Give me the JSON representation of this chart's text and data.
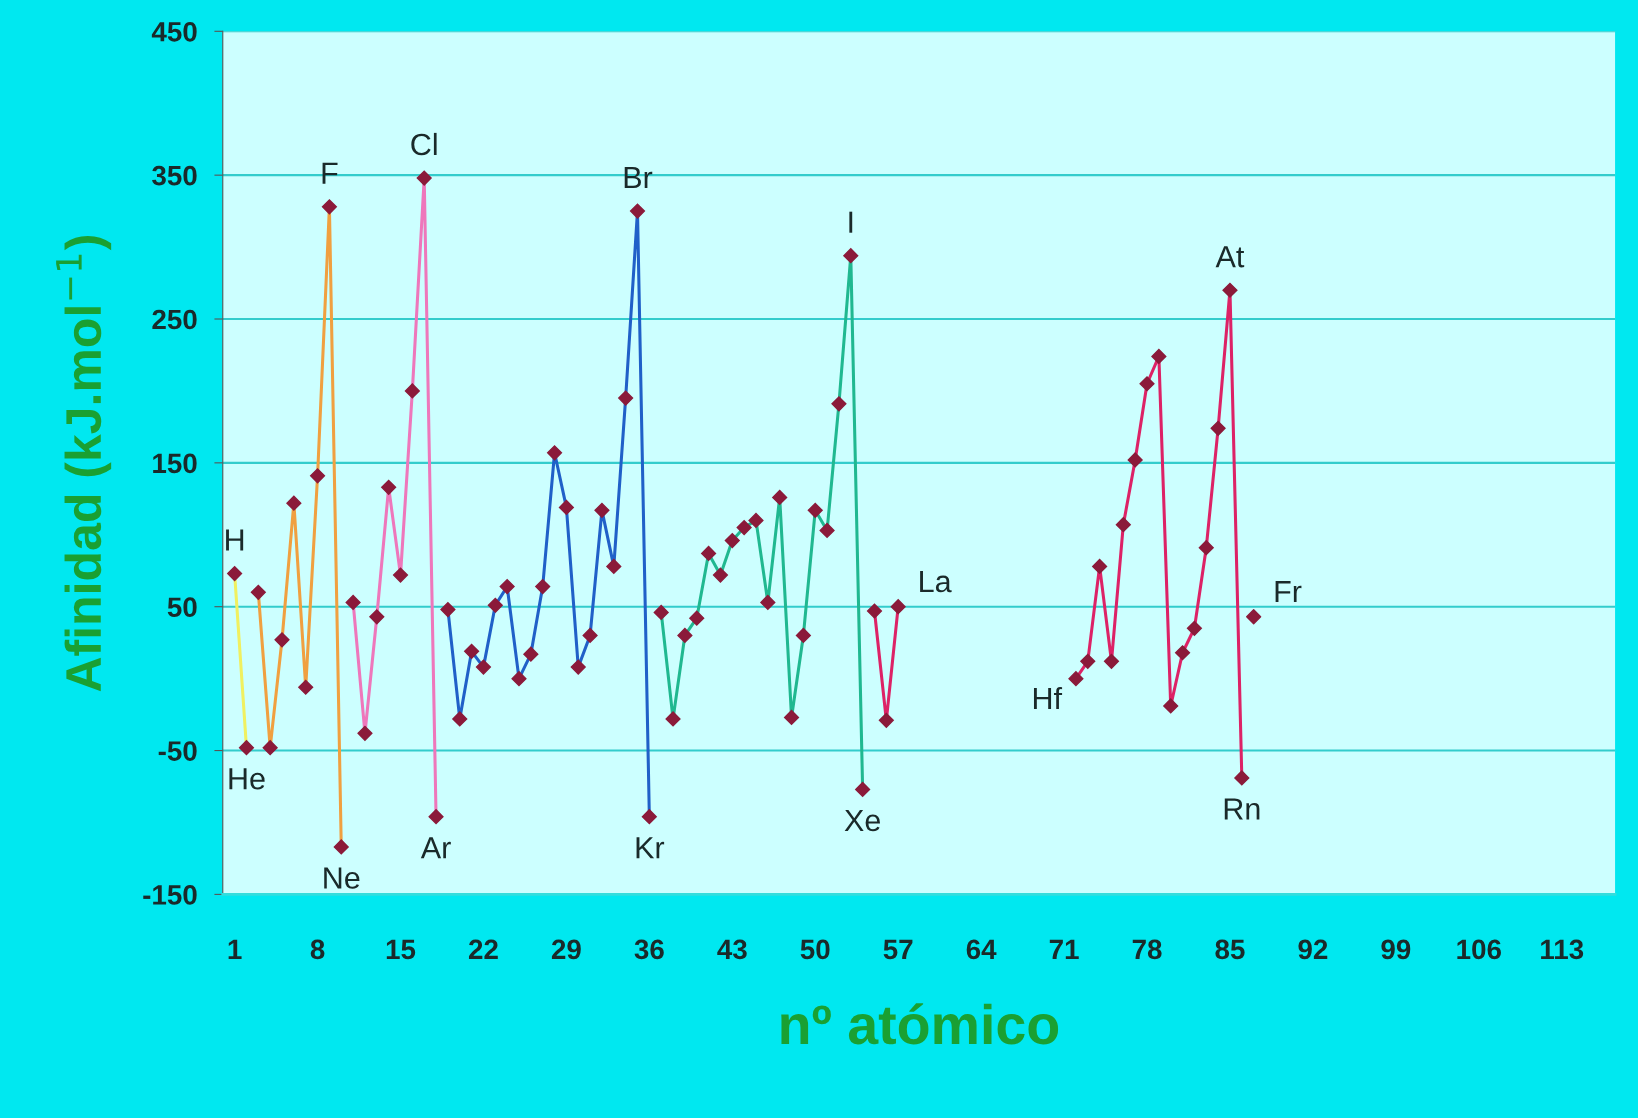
{
  "chart_data": {
    "type": "line",
    "xlabel": "nº atómico",
    "ylabel": "Afinidad (kJ.mol$^{−1}$)",
    "xlim": [
      0,
      117.5
    ],
    "xticks": [
      1,
      8,
      15,
      22,
      29,
      36,
      43,
      50,
      57,
      64,
      71,
      78,
      85,
      92,
      99,
      106,
      113
    ],
    "ylim": [
      -150,
      450
    ],
    "yticks": [
      -150,
      -50,
      50,
      150,
      250,
      350,
      450
    ],
    "grid": "y",
    "marker": "diamond",
    "line_style": "solid",
    "legend": false,
    "series": [
      {
        "color": "#f0f060",
        "x": [
          1,
          2
        ],
        "values": [
          73,
          -48
        ]
      },
      {
        "color": "#f0a040",
        "x": [
          3,
          4,
          5,
          6,
          7,
          8,
          9,
          10
        ],
        "values": [
          60,
          -48,
          27,
          122,
          -6,
          141,
          328,
          -117
        ]
      },
      {
        "color": "#ee77bb",
        "x": [
          11,
          12,
          13,
          14,
          15,
          16,
          17,
          18
        ],
        "values": [
          53,
          -38,
          43,
          133,
          72,
          200,
          348,
          -96
        ]
      },
      {
        "color": "#2060c8",
        "x": [
          19,
          20,
          21,
          22,
          23,
          24,
          25,
          26,
          27,
          28,
          29,
          30,
          31,
          32,
          33,
          34,
          35,
          36
        ],
        "values": [
          48,
          -28,
          19,
          8,
          51,
          64,
          0,
          17,
          64,
          157,
          119,
          8,
          30,
          117,
          78,
          195,
          325,
          -96
        ]
      },
      {
        "color": "#20b890",
        "x": [
          37,
          38,
          39,
          40,
          41,
          42,
          43,
          44,
          45,
          46,
          47,
          48,
          49,
          50,
          51,
          52,
          53,
          54
        ],
        "values": [
          46,
          -28,
          30,
          42,
          87,
          72,
          96,
          105,
          110,
          53,
          126,
          -27,
          30,
          117,
          103,
          191,
          294,
          -77
        ]
      },
      {
        "color": "#dd2266",
        "x": [
          55,
          56,
          57
        ],
        "values": [
          47,
          -29,
          50
        ]
      },
      {
        "color": "#dd2266",
        "x": [
          72,
          73,
          74,
          75,
          76,
          77,
          78,
          79,
          80,
          81,
          82,
          83,
          84,
          85,
          86
        ],
        "values": [
          0,
          12,
          78,
          12,
          107,
          152,
          205,
          224,
          -19,
          18,
          35,
          91,
          174,
          270,
          -69
        ]
      },
      {
        "color": "#8b1a3a",
        "type": "scatter",
        "x": [
          87
        ],
        "values": [
          43
        ]
      }
    ],
    "annotations": [
      {
        "text": "H",
        "x": 1,
        "y": 73
      },
      {
        "text": "He",
        "x": 2,
        "y": -48
      },
      {
        "text": "F",
        "x": 9,
        "y": 328
      },
      {
        "text": "Ne",
        "x": 10,
        "y": -117
      },
      {
        "text": "Cl",
        "x": 17,
        "y": 348
      },
      {
        "text": "Ar",
        "x": 18,
        "y": -96
      },
      {
        "text": "Br",
        "x": 35,
        "y": 325
      },
      {
        "text": "Kr",
        "x": 36,
        "y": -96
      },
      {
        "text": "I",
        "x": 53,
        "y": 294
      },
      {
        "text": "Xe",
        "x": 54,
        "y": -77
      },
      {
        "text": "La",
        "x": 57,
        "y": 50
      },
      {
        "text": "Hf",
        "x": 72,
        "y": 0
      },
      {
        "text": "At",
        "x": 85,
        "y": 270
      },
      {
        "text": "Rn",
        "x": 86,
        "y": -69
      },
      {
        "text": "Fr",
        "x": 87,
        "y": 43
      }
    ]
  }
}
